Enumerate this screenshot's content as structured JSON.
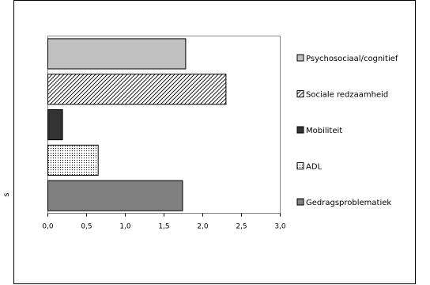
{
  "chart_data": {
    "type": "bar",
    "orientation": "horizontal",
    "categories": [
      "Gedragsproblematiek",
      "ADL",
      "Mobiliteit",
      "Sociale redzaamheid",
      "Psychosociaal/cognitief"
    ],
    "values": [
      1.74,
      0.65,
      0.19,
      2.3,
      1.78
    ],
    "xlim": [
      0,
      3
    ],
    "xticks": [
      "0,0",
      "0,5",
      "1,0",
      "1,5",
      "2,0",
      "2,5",
      "3,0"
    ],
    "grid": false,
    "legend_position": "right",
    "legend": [
      {
        "label": "Psychosociaal/cognitief",
        "fill": "light-gray"
      },
      {
        "label": "Sociale redzaamheid",
        "fill": "diagonal-hatch"
      },
      {
        "label": "Mobiliteit",
        "fill": "dark"
      },
      {
        "label": "ADL",
        "fill": "dotted"
      },
      {
        "label": "Gedragsproblematiek",
        "fill": "gray"
      }
    ],
    "colors": {
      "light-gray": "#c0c0c0",
      "dark": "#333333",
      "gray": "#808080",
      "hatch": "#000000",
      "dots": "#000000"
    },
    "side_label": "s"
  }
}
